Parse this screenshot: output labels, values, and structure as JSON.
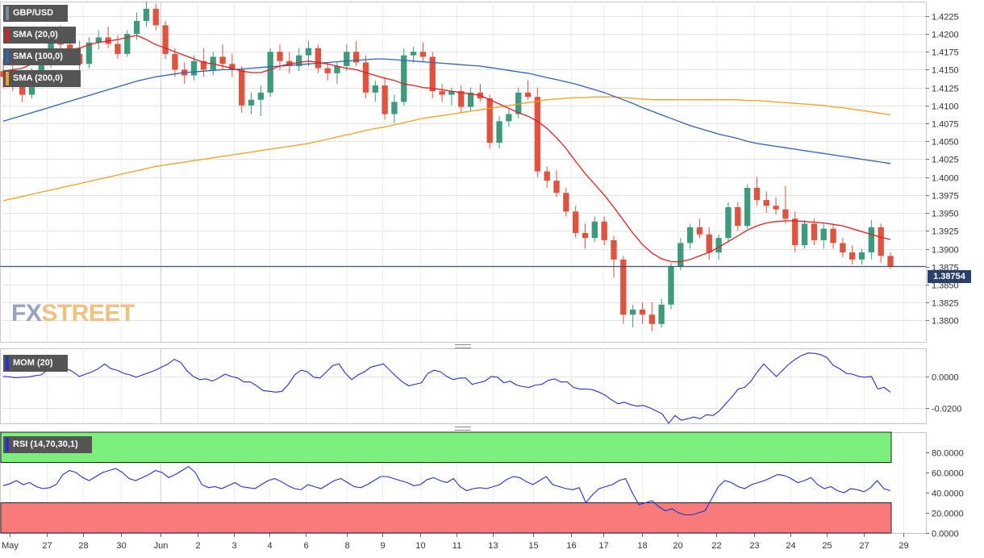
{
  "chart_data": {
    "type": "candlestick",
    "symbol": "GBP/USD",
    "main_panel": {
      "ylim": [
        1.377,
        1.4245
      ],
      "y_ticks": [
        "1.4225",
        "1.4200",
        "1.4175",
        "1.4150",
        "1.4125",
        "1.4100",
        "1.4075",
        "1.4050",
        "1.4025",
        "1.4000",
        "1.3975",
        "1.3950",
        "1.3925",
        "1.3900",
        "1.3875",
        "1.3850",
        "1.3825",
        "1.3800"
      ],
      "x_tick_labels": [
        "May",
        "27",
        "28",
        "30",
        "Jun",
        "2",
        "3",
        "4",
        "6",
        "8",
        "9",
        "10",
        "11",
        "13",
        "15",
        "16",
        "17",
        "18",
        "20",
        "22",
        "23",
        "24",
        "25",
        "27",
        "29"
      ],
      "last_price": "1.38754",
      "legend": [
        "GBP/USD",
        "SMA (20,0)",
        "SMA (100,0)",
        "SMA (200,0)"
      ],
      "candles": [
        [
          1.4148,
          1.4165,
          1.4125,
          1.414
        ],
        [
          1.414,
          1.4158,
          1.412,
          1.4132
        ],
        [
          1.4132,
          1.4145,
          1.4105,
          1.4115
        ],
        [
          1.4115,
          1.4152,
          1.411,
          1.4145
        ],
        [
          1.4145,
          1.417,
          1.4135,
          1.416
        ],
        [
          1.416,
          1.4205,
          1.4152,
          1.4198
        ],
        [
          1.4198,
          1.4212,
          1.4178,
          1.4185
        ],
        [
          1.4185,
          1.42,
          1.4165,
          1.4172
        ],
        [
          1.4172,
          1.419,
          1.415,
          1.4158
        ],
        [
          1.4158,
          1.4195,
          1.4152,
          1.4188
        ],
        [
          1.4188,
          1.4205,
          1.4178,
          1.4195
        ],
        [
          1.4195,
          1.421,
          1.418,
          1.4186
        ],
        [
          1.4186,
          1.4198,
          1.4165,
          1.4172
        ],
        [
          1.4172,
          1.4205,
          1.4168,
          1.42
        ],
        [
          1.42,
          1.423,
          1.4192,
          1.4218
        ],
        [
          1.4218,
          1.4245,
          1.421,
          1.4235
        ],
        [
          1.4235,
          1.4242,
          1.4205,
          1.4212
        ],
        [
          1.4212,
          1.4218,
          1.4165,
          1.4172
        ],
        [
          1.4172,
          1.418,
          1.414,
          1.415
        ],
        [
          1.415,
          1.416,
          1.413,
          1.4142
        ],
        [
          1.4142,
          1.417,
          1.4135,
          1.4162
        ],
        [
          1.4162,
          1.418,
          1.414,
          1.415
        ],
        [
          1.415,
          1.4175,
          1.4142,
          1.4168
        ],
        [
          1.4168,
          1.4185,
          1.415,
          1.4158
        ],
        [
          1.4158,
          1.4172,
          1.414,
          1.415
        ],
        [
          1.415,
          1.4155,
          1.409,
          1.41
        ],
        [
          1.41,
          1.4118,
          1.4088,
          1.4108
        ],
        [
          1.4108,
          1.4128,
          1.4085,
          1.4118
        ],
        [
          1.4118,
          1.418,
          1.4112,
          1.4175
        ],
        [
          1.4175,
          1.4185,
          1.415,
          1.4162
        ],
        [
          1.4162,
          1.4175,
          1.4145,
          1.4155
        ],
        [
          1.4155,
          1.418,
          1.4148,
          1.417
        ],
        [
          1.417,
          1.419,
          1.4155,
          1.418
        ],
        [
          1.418,
          1.4185,
          1.4145,
          1.4152
        ],
        [
          1.4152,
          1.416,
          1.4135,
          1.4145
        ],
        [
          1.4145,
          1.416,
          1.413,
          1.4155
        ],
        [
          1.4155,
          1.4185,
          1.4148,
          1.4175
        ],
        [
          1.4175,
          1.419,
          1.4155,
          1.416
        ],
        [
          1.416,
          1.417,
          1.411,
          1.4118
        ],
        [
          1.4118,
          1.4135,
          1.4105,
          1.4128
        ],
        [
          1.4128,
          1.414,
          1.408,
          1.4088
        ],
        [
          1.4088,
          1.4115,
          1.4075,
          1.4105
        ],
        [
          1.4105,
          1.418,
          1.41,
          1.417
        ],
        [
          1.417,
          1.4182,
          1.416,
          1.4175
        ],
        [
          1.4175,
          1.4188,
          1.416,
          1.4168
        ],
        [
          1.4168,
          1.4175,
          1.411,
          1.412
        ],
        [
          1.412,
          1.413,
          1.4105,
          1.4115
        ],
        [
          1.4115,
          1.4125,
          1.41,
          1.412
        ],
        [
          1.412,
          1.4128,
          1.409,
          1.4098
        ],
        [
          1.4098,
          1.4125,
          1.4092,
          1.4118
        ],
        [
          1.4118,
          1.413,
          1.4105,
          1.411
        ],
        [
          1.411,
          1.4115,
          1.404,
          1.4048
        ],
        [
          1.4048,
          1.4085,
          1.404,
          1.4078
        ],
        [
          1.4078,
          1.4095,
          1.407,
          1.4088
        ],
        [
          1.4088,
          1.4125,
          1.4082,
          1.4118
        ],
        [
          1.4118,
          1.4135,
          1.4108,
          1.4112
        ],
        [
          1.4112,
          1.4125,
          1.4,
          1.4008
        ],
        [
          1.4008,
          1.4015,
          1.3985,
          1.3995
        ],
        [
          1.3995,
          1.401,
          1.3972,
          1.3978
        ],
        [
          1.3978,
          1.3985,
          1.3945,
          1.3952
        ],
        [
          1.3952,
          1.396,
          1.3915,
          1.3922
        ],
        [
          1.3922,
          1.3935,
          1.39,
          1.3915
        ],
        [
          1.3915,
          1.3945,
          1.391,
          1.3938
        ],
        [
          1.3938,
          1.3945,
          1.3905,
          1.3912
        ],
        [
          1.3912,
          1.3918,
          1.386,
          1.3885
        ],
        [
          1.3885,
          1.389,
          1.3795,
          1.3808
        ],
        [
          1.3808,
          1.3822,
          1.379,
          1.3815
        ],
        [
          1.3815,
          1.3825,
          1.3795,
          1.3808
        ],
        [
          1.3808,
          1.3825,
          1.3785,
          1.3795
        ],
        [
          1.3795,
          1.383,
          1.379,
          1.3822
        ],
        [
          1.3822,
          1.388,
          1.3815,
          1.3875
        ],
        [
          1.3875,
          1.3915,
          1.387,
          1.3908
        ],
        [
          1.3908,
          1.3935,
          1.39,
          1.393
        ],
        [
          1.393,
          1.3942,
          1.3915,
          1.392
        ],
        [
          1.392,
          1.393,
          1.3885,
          1.3895
        ],
        [
          1.3895,
          1.392,
          1.3885,
          1.3915
        ],
        [
          1.3915,
          1.3965,
          1.391,
          1.3958
        ],
        [
          1.3958,
          1.3965,
          1.3925,
          1.3932
        ],
        [
          1.3932,
          1.399,
          1.3928,
          1.3985
        ],
        [
          1.3985,
          1.4,
          1.396,
          1.3968
        ],
        [
          1.3968,
          1.398,
          1.395,
          1.396
        ],
        [
          1.396,
          1.3972,
          1.3948,
          1.3955
        ],
        [
          1.3955,
          1.3988,
          1.3935,
          1.3942
        ],
        [
          1.3942,
          1.3952,
          1.3895,
          1.3905
        ],
        [
          1.3905,
          1.394,
          1.39,
          1.3935
        ],
        [
          1.3935,
          1.3942,
          1.3905,
          1.3912
        ],
        [
          1.3912,
          1.3935,
          1.39,
          1.3928
        ],
        [
          1.3928,
          1.3935,
          1.39,
          1.3908
        ],
        [
          1.3908,
          1.3915,
          1.3888,
          1.3895
        ],
        [
          1.3895,
          1.3905,
          1.3878,
          1.3885
        ],
        [
          1.3885,
          1.39,
          1.3878,
          1.3895
        ],
        [
          1.3895,
          1.394,
          1.3885,
          1.393
        ],
        [
          1.393,
          1.3935,
          1.388,
          1.389
        ],
        [
          1.389,
          1.3895,
          1.3872,
          1.3875
        ]
      ],
      "sma20": [
        1.4148,
        1.415,
        1.4152,
        1.4158,
        1.4165,
        1.4172,
        1.4175,
        1.4178,
        1.418,
        1.4185,
        1.4188,
        1.419,
        1.4192,
        1.4195,
        1.4198,
        1.4192,
        1.4185,
        1.418,
        1.4175,
        1.417,
        1.4165,
        1.416,
        1.4158,
        1.4155,
        1.4152,
        1.4148,
        1.4146,
        1.4146,
        1.415,
        1.4155,
        1.4158,
        1.416,
        1.4162,
        1.416,
        1.4158,
        1.4155,
        1.4152,
        1.415,
        1.4146,
        1.4142,
        1.4138,
        1.4135,
        1.413,
        1.4128,
        1.4125,
        1.4124,
        1.4122,
        1.412,
        1.4118,
        1.4116,
        1.4114,
        1.4108,
        1.4102,
        1.4096,
        1.409,
        1.4085,
        1.4078,
        1.4068,
        1.4055,
        1.404,
        1.4022,
        1.4005,
        1.399,
        1.3975,
        1.3958,
        1.394,
        1.3922,
        1.3906,
        1.3894,
        1.3886,
        1.3882,
        1.3882,
        1.3885,
        1.389,
        1.3895,
        1.3902,
        1.391,
        1.3918,
        1.3926,
        1.3932,
        1.3936,
        1.3938,
        1.3939,
        1.3939,
        1.3938,
        1.3937,
        1.3936,
        1.3934,
        1.3932,
        1.3928,
        1.3924,
        1.392,
        1.3916,
        1.3913
      ],
      "sma100": [
        1.4078,
        1.4082,
        1.4086,
        1.409,
        1.4094,
        1.4098,
        1.4102,
        1.4106,
        1.411,
        1.4114,
        1.4118,
        1.4122,
        1.4126,
        1.413,
        1.4134,
        1.4137,
        1.414,
        1.4142,
        1.4144,
        1.4146,
        1.4147,
        1.4148,
        1.4149,
        1.415,
        1.415,
        1.4151,
        1.4152,
        1.4153,
        1.4154,
        1.4155,
        1.4156,
        1.4157,
        1.4158,
        1.4159,
        1.416,
        1.4161,
        1.4162,
        1.4163,
        1.4164,
        1.4165,
        1.4165,
        1.4164,
        1.4163,
        1.4162,
        1.4161,
        1.416,
        1.4159,
        1.4158,
        1.4157,
        1.4156,
        1.4155,
        1.4153,
        1.4151,
        1.4149,
        1.4147,
        1.4145,
        1.4142,
        1.4139,
        1.4136,
        1.4133,
        1.413,
        1.4126,
        1.4122,
        1.4118,
        1.4113,
        1.4108,
        1.4103,
        1.4097,
        1.4092,
        1.4087,
        1.4082,
        1.4077,
        1.4072,
        1.4068,
        1.4064,
        1.406,
        1.4057,
        1.4054,
        1.405,
        1.4047,
        1.4045,
        1.4043,
        1.4041,
        1.4039,
        1.4037,
        1.4035,
        1.4033,
        1.4031,
        1.4029,
        1.4027,
        1.4025,
        1.4023,
        1.4021,
        1.4019
      ],
      "sma200": [
        1.3967,
        1.397,
        1.3973,
        1.3976,
        1.3979,
        1.3982,
        1.3985,
        1.3988,
        1.3991,
        1.3994,
        1.3997,
        1.4,
        1.4003,
        1.4006,
        1.4009,
        1.4012,
        1.4015,
        1.4017,
        1.4019,
        1.4021,
        1.4023,
        1.4025,
        1.4027,
        1.4029,
        1.4031,
        1.4033,
        1.4035,
        1.4037,
        1.4039,
        1.4041,
        1.4043,
        1.4045,
        1.4047,
        1.405,
        1.4053,
        1.4056,
        1.4059,
        1.4062,
        1.4065,
        1.4068,
        1.407,
        1.4073,
        1.4076,
        1.4079,
        1.4082,
        1.4084,
        1.4086,
        1.4088,
        1.409,
        1.4092,
        1.4094,
        1.4096,
        1.4098,
        1.41,
        1.4102,
        1.4104,
        1.4106,
        1.4108,
        1.4109,
        1.411,
        1.4111,
        1.4111,
        1.4112,
        1.4112,
        1.4112,
        1.4111,
        1.411,
        1.4109,
        1.4108,
        1.4108,
        1.4108,
        1.4108,
        1.4108,
        1.4108,
        1.4108,
        1.4108,
        1.4108,
        1.4108,
        1.4107,
        1.4107,
        1.4106,
        1.4105,
        1.4104,
        1.4103,
        1.4102,
        1.4101,
        1.41,
        1.4098,
        1.4097,
        1.4095,
        1.4093,
        1.4091,
        1.4089,
        1.4087
      ]
    },
    "mom_panel": {
      "label": "MOM (20)",
      "ylim": [
        -0.03,
        0.018
      ],
      "y_ticks": [
        "0.0000",
        "-0.0200"
      ],
      "values": [
        0.0,
        -0.0002,
        -0.0008,
        -0.0005,
        -0.0004,
        0.0005,
        0.001,
        0.004,
        0.0075,
        0.006,
        0.005,
        0.003,
        0.0,
        0.0015,
        0.003,
        0.005,
        0.008,
        0.005,
        0.004,
        0.002,
        0.001,
        -0.0005,
        0.001,
        0.0025,
        0.004,
        0.006,
        0.008,
        0.011,
        0.009,
        0.0035,
        0.0,
        -0.002,
        -0.0015,
        -0.003,
        -0.001,
        0.0015,
        0.0,
        -0.001,
        -0.0035,
        -0.0035,
        -0.006,
        -0.009,
        -0.0095,
        -0.01,
        -0.0095,
        -0.005,
        0.001,
        0.004,
        0.003,
        -0.0005,
        -0.001,
        0.003,
        0.007,
        0.008,
        0.002,
        -0.002,
        0.001,
        0.003,
        0.006,
        0.007,
        0.008,
        0.004,
        0.0,
        -0.0035,
        -0.006,
        -0.005,
        -0.004,
        0.002,
        0.004,
        0.003,
        0.0,
        -0.002,
        -0.001,
        -0.001,
        -0.005,
        -0.004,
        -0.003,
        0.0,
        -0.0005,
        -0.004,
        -0.003,
        -0.0055,
        -0.0065,
        -0.007,
        -0.0055,
        -0.005,
        -0.0025,
        -0.0015,
        -0.0035,
        -0.0035,
        -0.007,
        -0.008,
        -0.008,
        -0.0085,
        -0.01,
        -0.012,
        -0.015,
        -0.0175,
        -0.0165,
        -0.018,
        -0.019,
        -0.0185,
        -0.02,
        -0.022,
        -0.024,
        -0.03,
        -0.025,
        -0.028,
        -0.027,
        -0.026,
        -0.027,
        -0.0245,
        -0.025,
        -0.022,
        -0.0175,
        -0.013,
        -0.008,
        -0.007,
        -0.003,
        0.003,
        0.008,
        0.004,
        0.0,
        0.004,
        0.008,
        0.011,
        0.0135,
        0.015,
        0.0148,
        0.014,
        0.012,
        0.007,
        0.005,
        0.002,
        0.0015,
        0.0,
        -0.0005,
        0.0,
        -0.008,
        -0.007,
        -0.01
      ],
      "series_name": "MOM (20)"
    },
    "rsi_panel": {
      "label": "RSI (14,70,30,1)",
      "ylim": [
        0,
        100
      ],
      "y_ticks": [
        "80.0000",
        "60.0000",
        "40.0000",
        "20.0000",
        "0.0000"
      ],
      "overbought": 70,
      "oversold": 30,
      "values": [
        47,
        49,
        52,
        48,
        50,
        46,
        44,
        45,
        48,
        58,
        62,
        60,
        55,
        52,
        56,
        60,
        62,
        64,
        60,
        54,
        52,
        55,
        58,
        62,
        60,
        55,
        58,
        62,
        66,
        60,
        48,
        45,
        46,
        44,
        47,
        50,
        46,
        45,
        44,
        48,
        52,
        54,
        51,
        47,
        44,
        43,
        48,
        46,
        44,
        48,
        52,
        54,
        50,
        46,
        45,
        48,
        52,
        56,
        56,
        54,
        52,
        50,
        47,
        48,
        53,
        55,
        52,
        50,
        54,
        46,
        42,
        44,
        45,
        44,
        46,
        48,
        53,
        56,
        55,
        51,
        48,
        52,
        56,
        48,
        46,
        44,
        43,
        45,
        30,
        38,
        44,
        46,
        48,
        52,
        54,
        40,
        28,
        30,
        32,
        26,
        22,
        24,
        20,
        18,
        18,
        20,
        22,
        34,
        46,
        52,
        50,
        46,
        44,
        48,
        50,
        52,
        55,
        58,
        57,
        54,
        50,
        52,
        55,
        48,
        44,
        46,
        42,
        40,
        44,
        43,
        41,
        45,
        52,
        44,
        42
      ]
    }
  }
}
